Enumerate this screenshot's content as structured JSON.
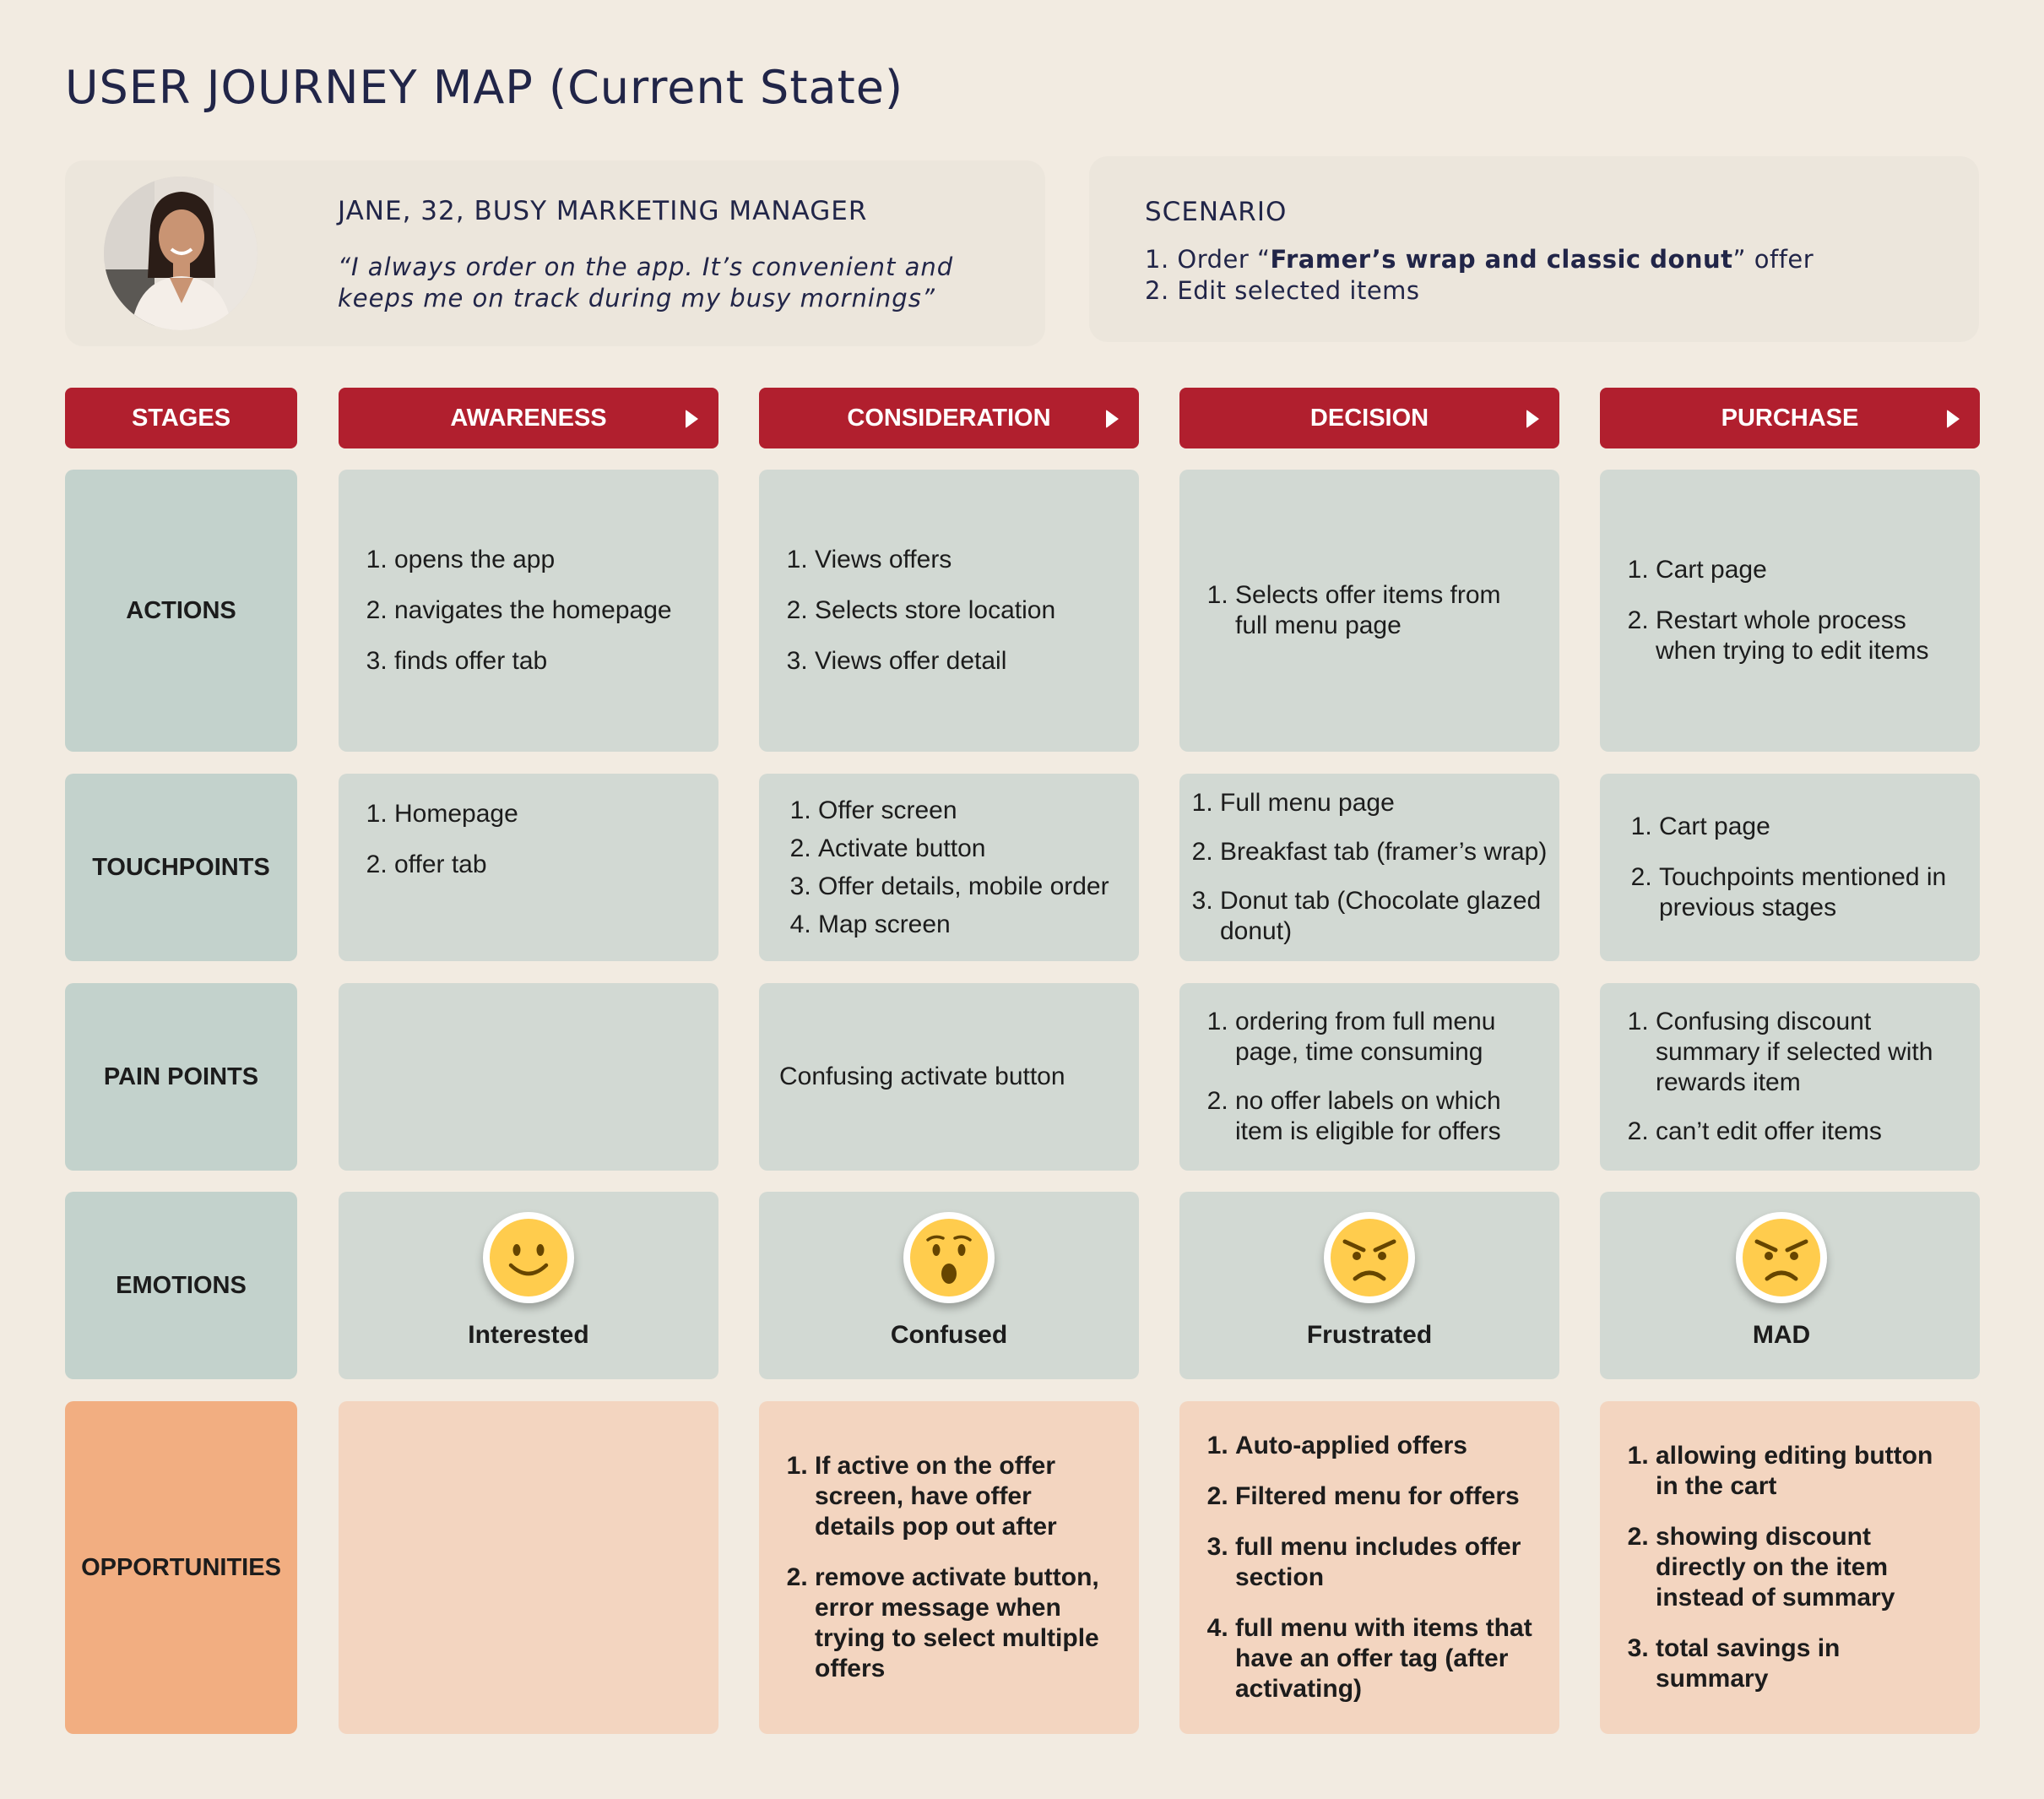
{
  "title": "USER JOURNEY MAP (Current State)",
  "persona": {
    "name": "JANE, 32, BUSY MARKETING MANAGER",
    "quote": "“I always order on the app. It’s convenient and keeps me on track during my busy mornings”"
  },
  "scenario": {
    "title": "SCENARIO",
    "item1_prefix": "1. Order “",
    "item1_bold": "Framer’s wrap and classic donut",
    "item1_suffix": "” offer",
    "item2": "2. Edit selected items"
  },
  "rows": {
    "stages": "STAGES",
    "actions": "ACTIONS",
    "touchpoints": "TOUCHPOINTS",
    "pain_points": "PAIN POINTS",
    "emotions": "EMOTIONS",
    "opportunities": "OPPORTUNITIES"
  },
  "stages": [
    {
      "name": "AWARENESS",
      "actions": [
        "opens the app",
        "navigates the homepage",
        "finds offer tab"
      ],
      "touchpoints": [
        "Homepage",
        "offer tab"
      ],
      "pain_points": [],
      "emotion": "Interested",
      "emotion_icon": "smiling-face-icon",
      "opportunities": []
    },
    {
      "name": "CONSIDERATION",
      "actions": [
        "Views offers",
        "Selects store location",
        "Views offer detail"
      ],
      "touchpoints": [
        "Offer screen",
        "Activate button",
        "Offer details, mobile order",
        "Map screen"
      ],
      "pain_points_text": "Confusing activate button",
      "emotion": "Confused",
      "emotion_icon": "surprised-face-icon",
      "opportunities": [
        "If active on the offer screen, have offer details pop out after",
        "remove activate button, error message when trying to select multiple offers"
      ]
    },
    {
      "name": "DECISION",
      "actions": [
        "Selects offer items from full menu page"
      ],
      "touchpoints": [
        "Full menu page",
        "Breakfast tab (framer’s wrap)",
        "Donut tab (Chocolate glazed donut)"
      ],
      "pain_points": [
        "ordering from full menu page, time consuming",
        "no offer labels on which item is eligible for offers"
      ],
      "emotion": "Frustrated",
      "emotion_icon": "angry-face-icon",
      "opportunities": [
        "Auto-applied offers",
        "Filtered menu for offers",
        "full menu includes offer section",
        "full menu with items that have an offer tag (after activating)"
      ]
    },
    {
      "name": "PURCHASE",
      "actions": [
        "Cart page",
        "Restart whole process when trying to edit items"
      ],
      "touchpoints": [
        "Cart page",
        "Touchpoints mentioned in previous stages"
      ],
      "pain_points": [
        "Confusing discount summary if selected with rewards item",
        "can’t edit offer items"
      ],
      "emotion": "MAD",
      "emotion_icon": "angry-face-icon",
      "opportunities": [
        "allowing editing button in the cart",
        "showing discount directly on the item instead of summary",
        "total savings in summary"
      ]
    }
  ],
  "colors": {
    "background": "#f2ebe1",
    "stage_header": "#b11f2e",
    "label_cell": "#c3d2cc",
    "content_cell": "#d2d9d3",
    "opportunity_label": "#f2ae81",
    "opportunity_cell": "#f3d5c0",
    "title_text": "#212548",
    "emoji_yellow": "#ffcc4d"
  }
}
